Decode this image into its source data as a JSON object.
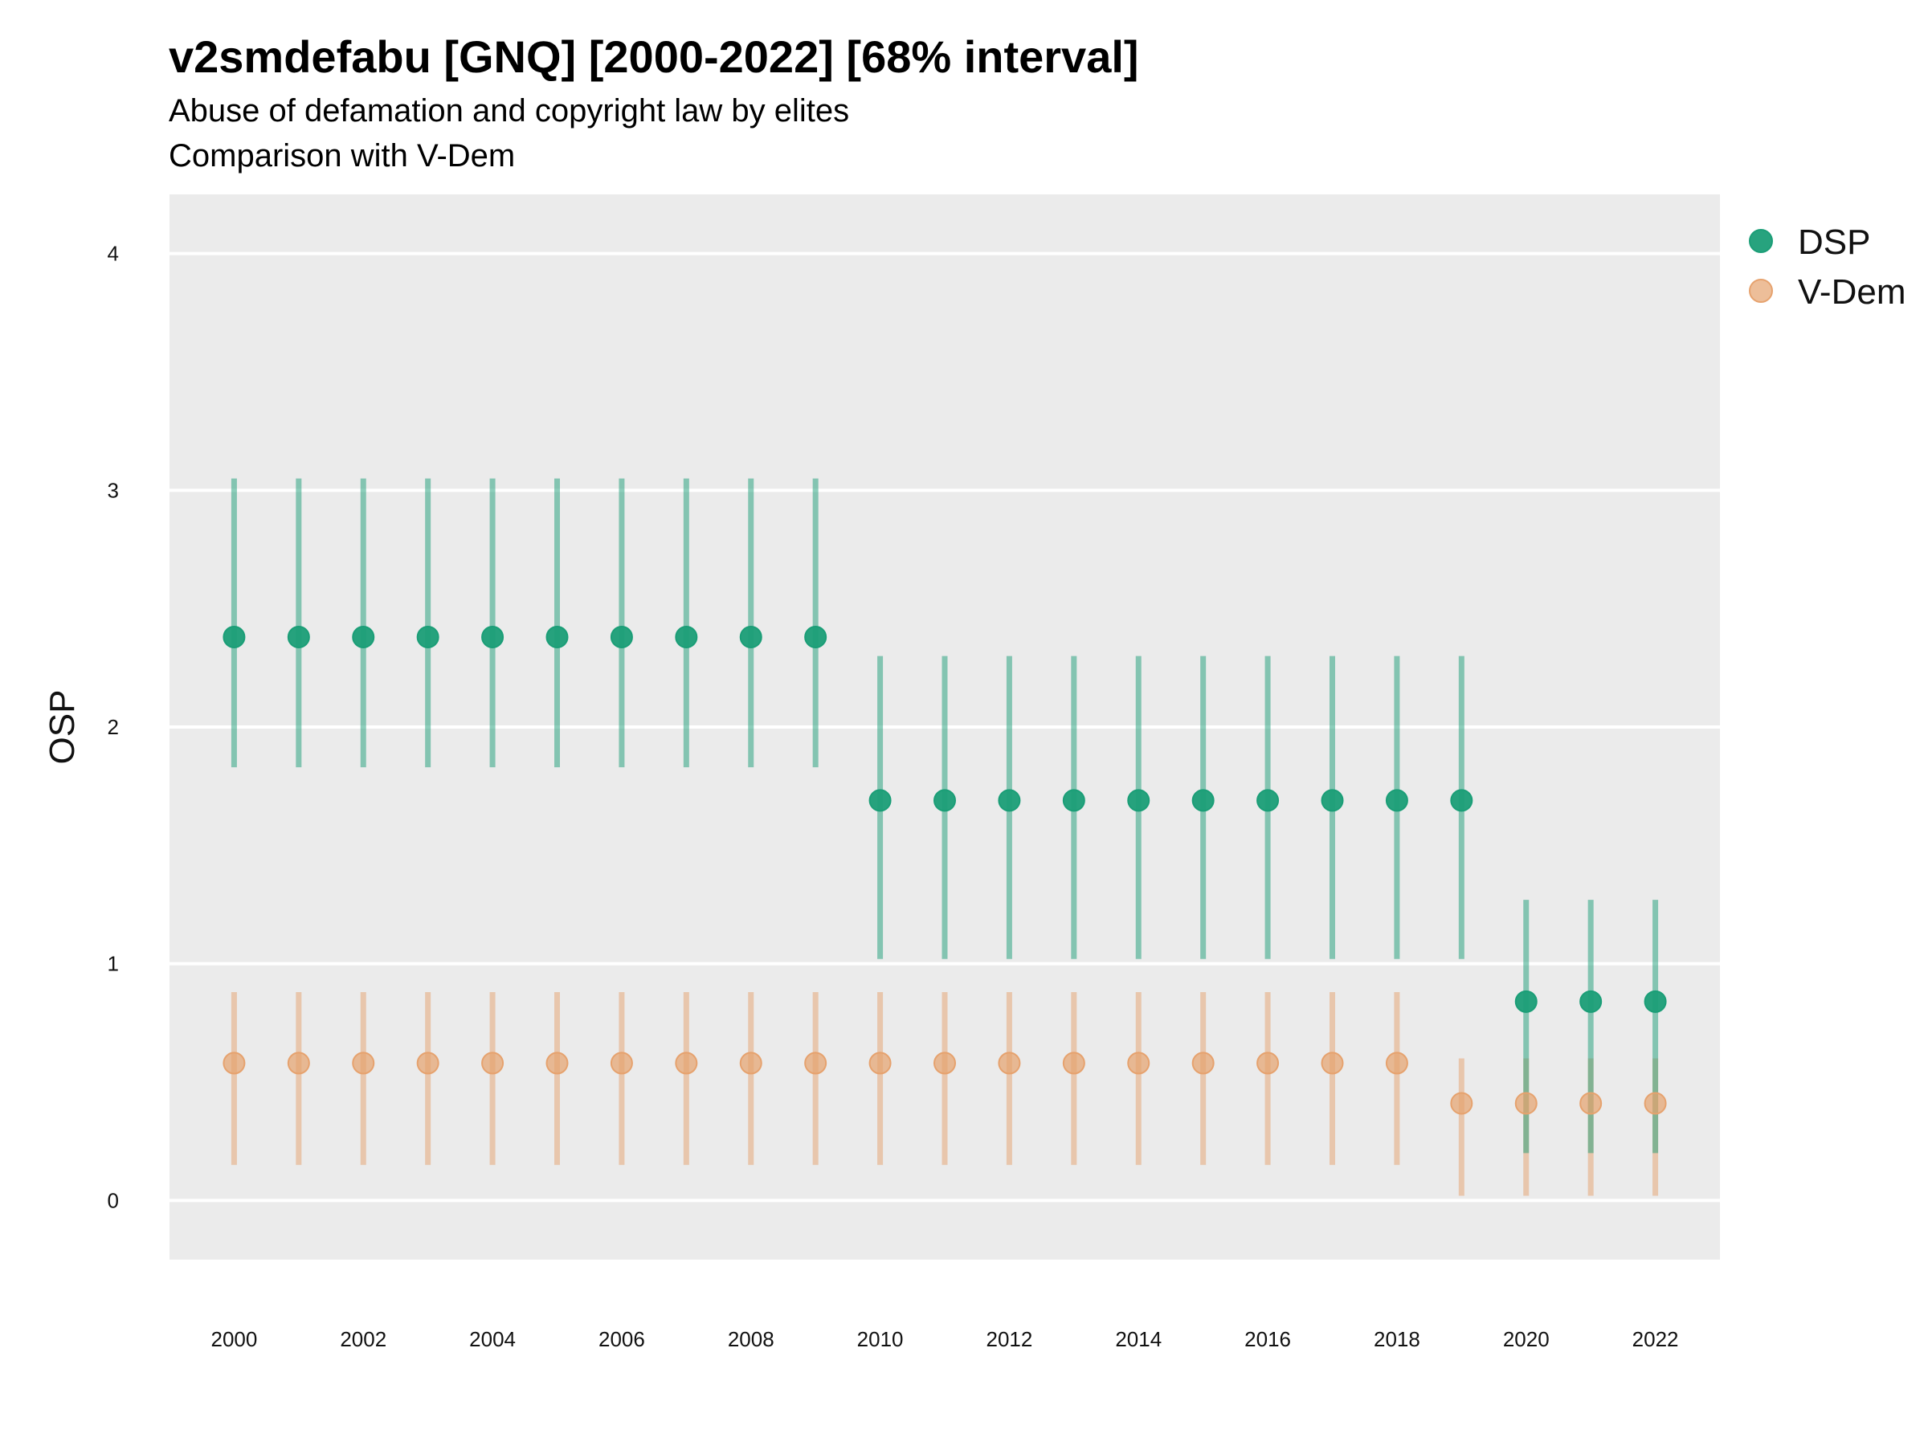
{
  "chart_data": {
    "type": "scatter",
    "title": "v2smdefabu [GNQ] [2000-2022] [68% interval]",
    "subtitle": "Abuse of defamation and copyright law by elites",
    "subtitle2": "Comparison with V-Dem",
    "xlabel": "",
    "ylabel": "OSP",
    "xlim": [
      1999,
      2023
    ],
    "ylim": [
      -0.25,
      4.25
    ],
    "x_ticks": [
      2000,
      2002,
      2004,
      2006,
      2008,
      2010,
      2012,
      2014,
      2016,
      2018,
      2020,
      2022
    ],
    "y_ticks": [
      0,
      1,
      2,
      3,
      4
    ],
    "grid": true,
    "legend_position": "right",
    "colors": {
      "DSP": "#1b9e77",
      "V-Dem": "#e6a26e",
      "panel": "#ebebeb",
      "grid": "#ffffff"
    },
    "series": [
      {
        "name": "DSP",
        "x": [
          2000,
          2001,
          2002,
          2003,
          2004,
          2005,
          2006,
          2007,
          2008,
          2009,
          2010,
          2011,
          2012,
          2013,
          2014,
          2015,
          2016,
          2017,
          2018,
          2019,
          2020,
          2021,
          2022
        ],
        "y": [
          2.38,
          2.38,
          2.38,
          2.38,
          2.38,
          2.38,
          2.38,
          2.38,
          2.38,
          2.38,
          1.69,
          1.69,
          1.69,
          1.69,
          1.69,
          1.69,
          1.69,
          1.69,
          1.69,
          1.69,
          0.84,
          0.84,
          0.84
        ],
        "low": [
          1.83,
          1.83,
          1.83,
          1.83,
          1.83,
          1.83,
          1.83,
          1.83,
          1.83,
          1.83,
          1.02,
          1.02,
          1.02,
          1.02,
          1.02,
          1.02,
          1.02,
          1.02,
          1.02,
          1.02,
          0.2,
          0.2,
          0.2
        ],
        "high": [
          3.05,
          3.05,
          3.05,
          3.05,
          3.05,
          3.05,
          3.05,
          3.05,
          3.05,
          3.05,
          2.3,
          2.3,
          2.3,
          2.3,
          2.3,
          2.3,
          2.3,
          2.3,
          2.3,
          2.3,
          1.27,
          1.27,
          1.27
        ]
      },
      {
        "name": "V-Dem",
        "x": [
          2000,
          2001,
          2002,
          2003,
          2004,
          2005,
          2006,
          2007,
          2008,
          2009,
          2010,
          2011,
          2012,
          2013,
          2014,
          2015,
          2016,
          2017,
          2018,
          2019,
          2020,
          2021,
          2022
        ],
        "y": [
          0.58,
          0.58,
          0.58,
          0.58,
          0.58,
          0.58,
          0.58,
          0.58,
          0.58,
          0.58,
          0.58,
          0.58,
          0.58,
          0.58,
          0.58,
          0.58,
          0.58,
          0.58,
          0.58,
          0.41,
          0.41,
          0.41,
          0.41
        ],
        "low": [
          0.15,
          0.15,
          0.15,
          0.15,
          0.15,
          0.15,
          0.15,
          0.15,
          0.15,
          0.15,
          0.15,
          0.15,
          0.15,
          0.15,
          0.15,
          0.15,
          0.15,
          0.15,
          0.15,
          0.02,
          0.02,
          0.02,
          0.02
        ],
        "high": [
          0.88,
          0.88,
          0.88,
          0.88,
          0.88,
          0.88,
          0.88,
          0.88,
          0.88,
          0.88,
          0.88,
          0.88,
          0.88,
          0.88,
          0.88,
          0.88,
          0.88,
          0.88,
          0.88,
          0.6,
          0.6,
          0.6,
          0.6
        ]
      }
    ]
  }
}
